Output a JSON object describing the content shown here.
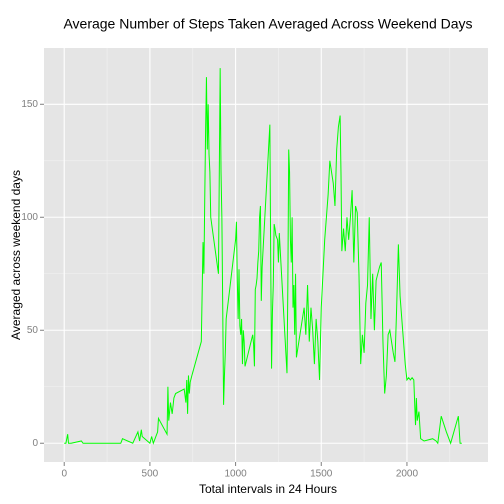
{
  "chart_data": {
    "type": "line",
    "title": "Average Number of Steps Taken Averaged Across Weekend Days",
    "x_label": "Total intervals in 24 Hours",
    "y_label": "Averaged across weekend days",
    "xlim": [
      -118,
      2473
    ],
    "ylim": [
      -8.3,
      174.9
    ],
    "xticks": [
      0,
      500,
      1000,
      1500,
      2000
    ],
    "yticks": [
      0,
      50,
      100,
      150
    ],
    "xminor": [
      250,
      750,
      1250,
      1750,
      2250
    ],
    "yminor": [
      25,
      75,
      125
    ],
    "grid": true,
    "background": "#e5e5e5",
    "series": [
      {
        "name": "steps",
        "color": "#00ff00",
        "x": [
          0,
          10,
          20,
          25,
          40,
          100,
          110,
          200,
          300,
          330,
          340,
          400,
          430,
          440,
          450,
          455,
          500,
          510,
          520,
          530,
          545,
          550,
          600,
          605,
          610,
          620,
          630,
          640,
          650,
          700,
          710,
          715,
          720,
          725,
          730,
          735,
          745,
          800,
          810,
          815,
          820,
          825,
          830,
          835,
          840,
          845,
          850,
          855,
          900,
          905,
          910,
          915,
          920,
          925,
          930,
          935,
          940,
          945,
          1000,
          1005,
          1010,
          1015,
          1020,
          1025,
          1030,
          1035,
          1040,
          1045,
          1050,
          1055,
          1100,
          1105,
          1110,
          1115,
          1120,
          1125,
          1130,
          1135,
          1140,
          1145,
          1150,
          1155,
          1200,
          1205,
          1210,
          1215,
          1220,
          1225,
          1230,
          1235,
          1240,
          1245,
          1250,
          1255,
          1300,
          1305,
          1310,
          1315,
          1320,
          1325,
          1330,
          1335,
          1340,
          1345,
          1350,
          1355,
          1400,
          1410,
          1420,
          1430,
          1440,
          1450,
          1460,
          1470,
          1480,
          1490,
          1500,
          1510,
          1520,
          1530,
          1540,
          1550,
          1560,
          1570,
          1580,
          1590,
          1600,
          1610,
          1615,
          1620,
          1630,
          1640,
          1650,
          1660,
          1670,
          1680,
          1690,
          1700,
          1710,
          1720,
          1730,
          1740,
          1750,
          1760,
          1770,
          1780,
          1790,
          1800,
          1810,
          1820,
          1830,
          1840,
          1850,
          1860,
          1870,
          1880,
          1890,
          1900,
          1910,
          1920,
          1930,
          1940,
          1950,
          1960,
          1970,
          1980,
          1990,
          2000,
          2010,
          2020,
          2030,
          2040,
          2050,
          2055,
          2060,
          2070,
          2080,
          2100,
          2150,
          2170,
          2180,
          2200,
          2230,
          2255,
          2300,
          2310,
          2320
        ],
        "values": [
          0,
          0,
          4,
          0,
          0,
          1,
          0,
          0,
          0,
          0,
          2,
          0,
          5,
          1,
          6,
          3,
          0,
          3,
          0,
          2,
          5,
          11,
          4,
          25,
          10,
          18,
          13,
          20,
          22,
          24,
          18,
          28,
          13,
          30,
          22,
          27,
          30,
          45,
          89,
          75,
          108,
          138,
          162,
          130,
          150,
          128,
          120,
          100,
          75,
          120,
          166,
          120,
          100,
          60,
          17,
          30,
          40,
          55,
          90,
          98,
          72,
          55,
          77,
          52,
          48,
          55,
          35,
          50,
          45,
          34,
          48,
          44,
          34,
          68,
          70,
          73,
          80,
          85,
          100,
          105,
          63,
          78,
          141,
          81,
          33,
          58,
          70,
          97,
          95,
          92,
          91,
          90,
          80,
          93,
          31,
          70,
          130,
          120,
          90,
          80,
          100,
          60,
          70,
          48,
          75,
          38,
          60,
          48,
          70,
          45,
          60,
          50,
          35,
          55,
          45,
          28,
          60,
          75,
          90,
          100,
          110,
          125,
          120,
          115,
          105,
          130,
          140,
          145,
          120,
          85,
          95,
          85,
          100,
          90,
          100,
          112,
          80,
          105,
          102,
          75,
          35,
          48,
          40,
          62,
          70,
          100,
          55,
          75,
          50,
          72,
          75,
          78,
          80,
          45,
          22,
          30,
          48,
          50,
          45,
          40,
          36,
          60,
          88,
          65,
          55,
          45,
          35,
          28,
          29,
          28,
          29,
          28,
          8,
          20,
          10,
          14,
          2,
          1,
          2,
          1,
          0,
          12,
          5,
          0,
          12,
          0,
          0
        ]
      }
    ]
  }
}
